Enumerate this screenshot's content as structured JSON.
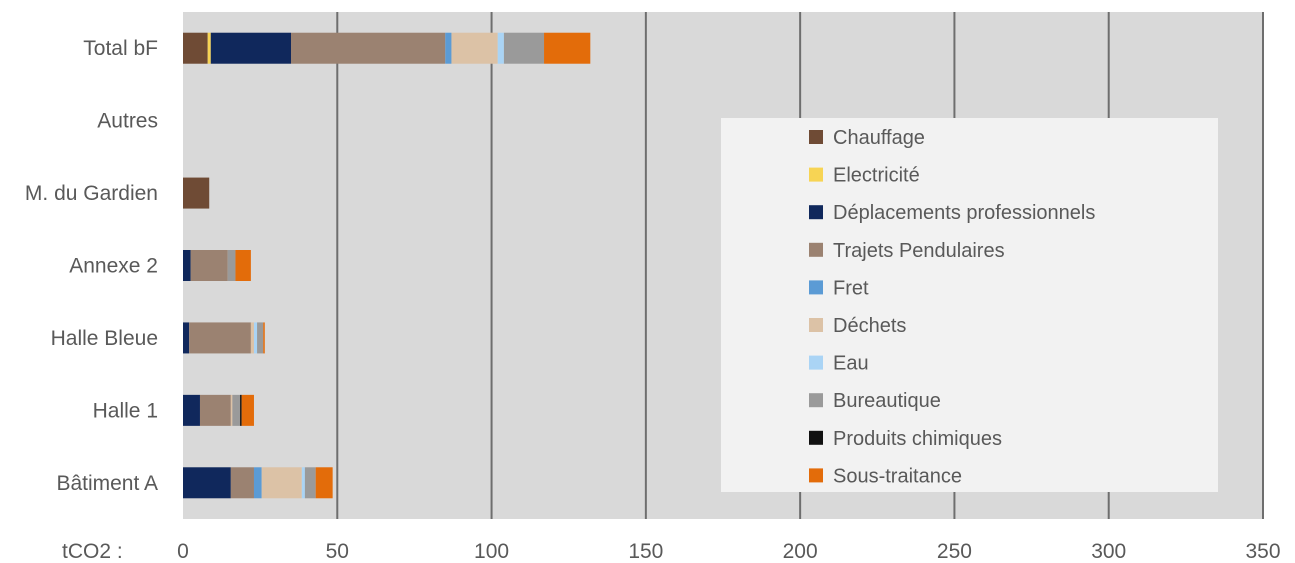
{
  "chart_data": {
    "type": "bar",
    "orientation": "horizontal",
    "stacked": true,
    "unit_label": "tCO2 :",
    "xlim": [
      0,
      350
    ],
    "x_ticks": [
      "0",
      "50",
      "100",
      "150",
      "200",
      "250",
      "300",
      "350"
    ],
    "grid": true,
    "legend_position": "right",
    "categories": [
      "Total bF",
      "Autres",
      "M. du Gardien",
      "Annexe 2",
      "Halle Bleue",
      "Halle 1",
      "Bâtiment A"
    ],
    "series": [
      {
        "name": "Chauffage",
        "color": "#6f4b35",
        "values": [
          8,
          0,
          8.5,
          0,
          0,
          0,
          0
        ]
      },
      {
        "name": "Electricité",
        "color": "#f7d454",
        "values": [
          1,
          0,
          0,
          0,
          0,
          0,
          0
        ]
      },
      {
        "name": "Déplacements professionnels",
        "color": "#10285c",
        "values": [
          26,
          0,
          0,
          2.5,
          2,
          5.5,
          15.5
        ]
      },
      {
        "name": "Trajets Pendulaires",
        "color": "#9b8271",
        "values": [
          50,
          0,
          0,
          12,
          20,
          10,
          7.5
        ]
      },
      {
        "name": "Fret",
        "color": "#5b9bd5",
        "values": [
          2,
          0,
          0,
          0,
          0,
          0,
          2.5
        ]
      },
      {
        "name": "Déchets",
        "color": "#dcc2a6",
        "values": [
          15,
          0,
          0,
          0,
          1,
          0.5,
          13
        ]
      },
      {
        "name": "Eau",
        "color": "#aad4f5",
        "values": [
          2,
          0,
          0,
          0,
          1,
          0,
          1
        ]
      },
      {
        "name": "Bureautique",
        "color": "#9a9a9a",
        "values": [
          13,
          0,
          0,
          2.5,
          2,
          2.5,
          3.5
        ]
      },
      {
        "name": "Produits chimiques",
        "color": "#111111",
        "values": [
          0,
          0,
          0,
          0,
          0,
          0.5,
          0
        ]
      },
      {
        "name": "Sous-traitance",
        "color": "#e36c0a",
        "values": [
          15,
          0,
          0,
          5,
          0.5,
          4,
          5.5
        ]
      }
    ]
  }
}
